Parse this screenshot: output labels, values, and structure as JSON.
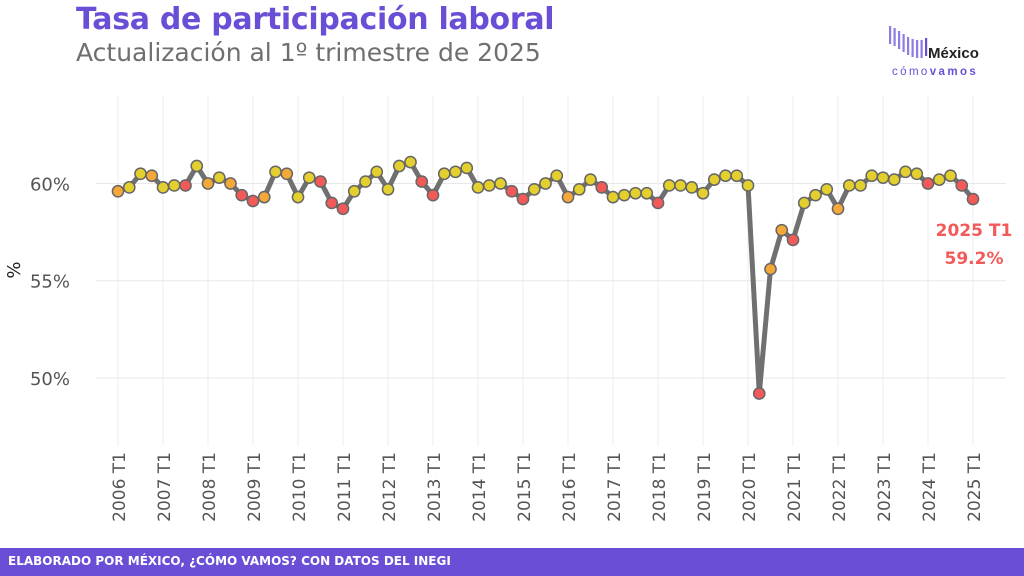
{
  "header": {
    "title": "Tasa de participación laboral",
    "subtitle": "Actualización al 1º trimestre de 2025"
  },
  "logo": {
    "word": "México",
    "tag_light": "cómo",
    "tag_bold": "vamos"
  },
  "footer": {
    "text": "ELABORADO POR MÉXICO, ¿CÓMO VAMOS? CON DATOS DEL INEGI"
  },
  "colors": {
    "title": "#6a4fd6",
    "line": "#707070",
    "annotation": "#f25a5a",
    "marker_red": "#f25a5a",
    "marker_orange": "#f5a83a",
    "marker_yellow": "#e3cf2e",
    "footer": "#6a4fd6"
  },
  "chart_data": {
    "type": "line",
    "ylabel": "%",
    "ylim": [
      46.5,
      64.5
    ],
    "yticks": [
      50,
      55,
      60
    ],
    "ytick_labels": [
      "50%",
      "55%",
      "60%"
    ],
    "xtick_labels": [
      "2006 T1",
      "2007 T1",
      "2008 T1",
      "2009 T1",
      "2010 T1",
      "2011 T1",
      "2012 T1",
      "2013 T1",
      "2014 T1",
      "2015 T1",
      "2016 T1",
      "2017 T1",
      "2018 T1",
      "2019 T1",
      "2020 T1",
      "2021 T1",
      "2022 T1",
      "2023 T1",
      "2024 T1",
      "2025 T1"
    ],
    "grid": true,
    "series": [
      {
        "x": [
          "2006 T1",
          "2006 T2",
          "2006 T3",
          "2006 T4",
          "2007 T1",
          "2007 T2",
          "2007 T3",
          "2007 T4",
          "2008 T1",
          "2008 T2",
          "2008 T3",
          "2008 T4",
          "2009 T1",
          "2009 T2",
          "2009 T3",
          "2009 T4",
          "2010 T1",
          "2010 T2",
          "2010 T3",
          "2010 T4",
          "2011 T1",
          "2011 T2",
          "2011 T3",
          "2011 T4",
          "2012 T1",
          "2012 T2",
          "2012 T3",
          "2012 T4",
          "2013 T1",
          "2013 T2",
          "2013 T3",
          "2013 T4",
          "2014 T1",
          "2014 T2",
          "2014 T3",
          "2014 T4",
          "2015 T1",
          "2015 T2",
          "2015 T3",
          "2015 T4",
          "2016 T1",
          "2016 T2",
          "2016 T3",
          "2016 T4",
          "2017 T1",
          "2017 T2",
          "2017 T3",
          "2017 T4",
          "2018 T1",
          "2018 T2",
          "2018 T3",
          "2018 T4",
          "2019 T1",
          "2019 T2",
          "2019 T3",
          "2019 T4",
          "2020 T1",
          "2020 T2",
          "2020 T3",
          "2020 T4",
          "2021 T1",
          "2021 T2",
          "2021 T3",
          "2021 T4",
          "2022 T1",
          "2022 T2",
          "2022 T3",
          "2022 T4",
          "2023 T1",
          "2023 T2",
          "2023 T3",
          "2023 T4",
          "2024 T1",
          "2024 T2",
          "2024 T3",
          "2024 T4",
          "2025 T1"
        ],
        "values": [
          59.6,
          59.8,
          60.5,
          60.4,
          59.8,
          59.9,
          59.9,
          60.9,
          60.0,
          60.3,
          60.0,
          59.4,
          59.1,
          59.3,
          60.6,
          60.5,
          59.3,
          60.3,
          60.1,
          59.0,
          58.7,
          59.6,
          60.1,
          60.6,
          59.7,
          60.9,
          61.1,
          60.1,
          59.4,
          60.5,
          60.6,
          60.8,
          59.8,
          59.9,
          60.0,
          59.6,
          59.2,
          59.7,
          60.0,
          60.4,
          59.3,
          59.7,
          60.2,
          59.8,
          59.3,
          59.4,
          59.5,
          59.5,
          59.0,
          59.9,
          59.9,
          59.8,
          59.5,
          60.2,
          60.4,
          60.4,
          59.9,
          49.2,
          55.6,
          57.6,
          57.1,
          59.0,
          59.4,
          59.7,
          58.7,
          59.9,
          59.9,
          60.4,
          60.3,
          60.2,
          60.6,
          60.5,
          60.0,
          60.2,
          60.4,
          59.9,
          59.2
        ],
        "marker_colors": [
          "marker_orange",
          "marker_yellow",
          "marker_yellow",
          "marker_orange",
          "marker_yellow",
          "marker_yellow",
          "marker_red",
          "marker_yellow",
          "marker_orange",
          "marker_yellow",
          "marker_orange",
          "marker_red",
          "marker_red",
          "marker_orange",
          "marker_yellow",
          "marker_orange",
          "marker_yellow",
          "marker_yellow",
          "marker_red",
          "marker_red",
          "marker_red",
          "marker_yellow",
          "marker_yellow",
          "marker_yellow",
          "marker_yellow",
          "marker_yellow",
          "marker_yellow",
          "marker_red",
          "marker_red",
          "marker_yellow",
          "marker_yellow",
          "marker_yellow",
          "marker_yellow",
          "marker_yellow",
          "marker_yellow",
          "marker_red",
          "marker_red",
          "marker_yellow",
          "marker_yellow",
          "marker_yellow",
          "marker_orange",
          "marker_yellow",
          "marker_yellow",
          "marker_red",
          "marker_yellow",
          "marker_yellow",
          "marker_yellow",
          "marker_yellow",
          "marker_red",
          "marker_yellow",
          "marker_yellow",
          "marker_yellow",
          "marker_yellow",
          "marker_yellow",
          "marker_yellow",
          "marker_yellow",
          "marker_yellow",
          "marker_red",
          "marker_orange",
          "marker_orange",
          "marker_red",
          "marker_yellow",
          "marker_yellow",
          "marker_yellow",
          "marker_orange",
          "marker_yellow",
          "marker_yellow",
          "marker_yellow",
          "marker_yellow",
          "marker_yellow",
          "marker_yellow",
          "marker_yellow",
          "marker_red",
          "marker_yellow",
          "marker_yellow",
          "marker_red",
          "marker_red"
        ]
      }
    ],
    "annotation": {
      "label": "2025 T1",
      "value_text": "59.2%"
    }
  }
}
